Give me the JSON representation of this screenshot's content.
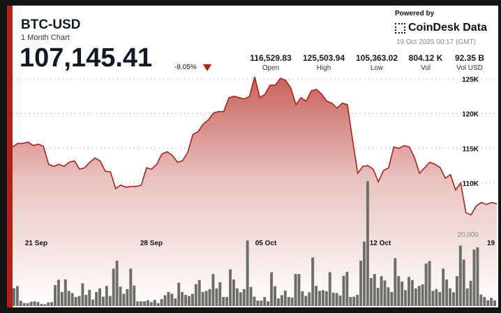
{
  "header": {
    "symbol": "BTC-USD",
    "subtitle": "1 Month Chart",
    "price": "107,145.41",
    "change": "-8.05%",
    "change_direction": "down"
  },
  "stats": [
    {
      "value": "116,529.83",
      "label": "Open"
    },
    {
      "value": "125,503.94",
      "label": "High"
    },
    {
      "value": "105,363.02",
      "label": "Low"
    },
    {
      "value": "804.12 K",
      "label": "Vol"
    },
    {
      "value": "92.35 B",
      "label": "Vol USD"
    }
  ],
  "branding": {
    "powered_by": "Powered by",
    "brand": "CoinDesk Data",
    "timestamp": "19 Oct 2025 00:17 (GMT)"
  },
  "colors": {
    "accent": "#b22218",
    "line": "#a8201a",
    "fill_top": "#c9615c",
    "volume": "#6e6e68"
  },
  "chart_data": {
    "type": "area",
    "title": "BTC-USD 1 Month Chart",
    "price_axis": {
      "ticks": [
        125,
        120,
        115,
        110
      ],
      "tick_labels": [
        "125K",
        "120K",
        "115K",
        "110K"
      ],
      "unit": "K USD"
    },
    "volume_axis": {
      "ticks": [
        20000
      ],
      "tick_labels": [
        "20,000"
      ]
    },
    "x_ticks": [
      "21 Sep",
      "28 Sep",
      "05 Oct",
      "12 Oct",
      "19"
    ],
    "price_k": [
      115.2,
      115.7,
      115.7,
      115.9,
      115.4,
      115.6,
      115.3,
      112.7,
      112.4,
      112.7,
      112.4,
      113.0,
      113.2,
      112.0,
      112.2,
      113.0,
      113.6,
      113.2,
      111.7,
      111.6,
      109.2,
      109.7,
      109.4,
      109.5,
      109.5,
      109.7,
      112.2,
      112.0,
      112.7,
      114.2,
      114.5,
      114.0,
      113.0,
      113.2,
      114.4,
      117.0,
      117.4,
      118.5,
      119.1,
      120.1,
      120.3,
      120.3,
      122.3,
      122.5,
      122.3,
      122.1,
      122.5,
      125.3,
      122.3,
      122.8,
      124.1,
      124.1,
      125.1,
      124.8,
      123.7,
      121.3,
      122.3,
      121.8,
      123.3,
      123.5,
      122.8,
      121.8,
      121.5,
      120.8,
      121.5,
      121.3,
      116.2,
      111.4,
      112.4,
      112.5,
      112.0,
      110.2,
      111.8,
      112.2,
      115.2,
      115.0,
      115.4,
      115.2,
      113.7,
      111.4,
      112.2,
      113.0,
      112.7,
      112.2,
      110.7,
      111.2,
      109.0,
      110.0,
      105.7,
      105.4,
      106.7,
      107.2,
      106.9,
      107.2,
      107.0
    ],
    "volume_k": [
      4.9,
      5.5,
      1.5,
      0.8,
      0.8,
      1.2,
      1.3,
      1.1,
      0.6,
      0.5,
      1.0,
      1.1,
      5.8,
      7.3,
      3.9,
      7.4,
      4.2,
      3.6,
      2.5,
      2.8,
      6.3,
      3.1,
      4.5,
      1.8,
      3.9,
      4.9,
      2.6,
      5.6,
      2.8,
      10.4,
      12.6,
      5.4,
      3.4,
      4.7,
      10.4,
      5.7,
      1.3,
      1.3,
      1.3,
      1.6,
      1.1,
      1.7,
      0.8,
      1.9,
      3.0,
      3.9,
      3.4,
      2.1,
      6.5,
      3.9,
      3.1,
      2.8,
      3.4,
      6.1,
      7.2,
      3.9,
      4.2,
      4.7,
      8.9,
      4.9,
      6.6,
      2.5,
      2.5,
      10.2,
      7.4,
      4.9,
      3.8,
      4.7,
      18.2,
      5.3,
      2.6,
      1.5,
      1.5,
      2.5,
      1.3,
      9.4,
      5.5,
      2.1,
      3.0,
      4.3,
      2.5,
      2.3,
      8.9,
      8.9,
      4.1,
      2.8,
      3.8,
      13.5,
      5.6,
      4.2,
      4.4,
      4.1,
      9.4,
      3.7,
      3.6,
      2.9,
      8.4,
      9.5,
      2.5,
      2.6,
      3.1,
      12.6,
      17.9,
      34.7,
      7.8,
      8.9,
      5.0,
      8.3,
      7.1,
      5.2,
      3.9,
      13.3,
      8.3,
      6.8,
      4.4,
      8.1,
      7.2,
      4.9,
      5.6,
      6.0,
      11.8,
      12.5,
      4.2,
      4.7,
      3.9,
      10.4,
      7.4,
      4.9,
      3.8,
      8.3,
      16.8,
      12.9,
      4.9,
      7.0,
      15.7,
      16.3,
      3.2,
      2.5,
      1.6,
      2.3,
      1.6
    ],
    "grid": "dotted horizontal",
    "legend": "none"
  }
}
